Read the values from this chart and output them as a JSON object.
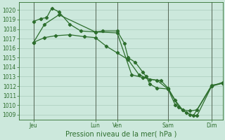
{
  "title": "Pression niveau de la mer( hPa )",
  "bg_color": "#cce8dc",
  "grid_color": "#aaccbb",
  "line_color": "#2d6e2d",
  "vline_color": "#556655",
  "xlim": [
    0,
    28
  ],
  "ylim": [
    1008.5,
    1020.8
  ],
  "yticks": [
    1009,
    1010,
    1011,
    1012,
    1013,
    1014,
    1015,
    1016,
    1017,
    1018,
    1019,
    1020
  ],
  "xtick_positions": [
    2.0,
    10.5,
    13.5,
    20.5,
    26.5
  ],
  "xtick_labels": [
    "Jeu",
    "Lun",
    "Ven",
    "Sam",
    "Dim"
  ],
  "vline_positions": [
    2.0,
    10.5,
    13.5,
    20.5,
    26.5
  ],
  "series1_x": [
    2.0,
    3.0,
    3.8,
    4.5,
    5.5,
    7.0,
    8.5,
    10.5,
    11.5,
    13.5,
    14.5,
    15.0,
    16.0,
    17.0,
    17.5,
    18.0,
    19.0,
    20.5,
    21.5,
    22.5,
    23.5,
    24.5,
    26.5,
    28.0
  ],
  "series1_y": [
    1018.8,
    1019.1,
    1019.2,
    1020.2,
    1019.8,
    1018.5,
    1017.8,
    1017.7,
    1017.8,
    1017.8,
    1016.5,
    1015.0,
    1014.5,
    1013.5,
    1013.0,
    1012.2,
    1011.8,
    1011.7,
    1010.0,
    1009.5,
    1009.0,
    1008.9,
    1012.0,
    1012.3
  ],
  "series2_x": [
    2.0,
    3.5,
    5.0,
    7.0,
    9.0,
    10.5,
    12.0,
    13.5,
    15.0,
    16.5,
    18.0,
    19.5,
    20.5,
    21.5,
    22.5,
    23.5,
    24.5,
    26.5,
    28.0
  ],
  "series2_y": [
    1016.6,
    1017.1,
    1017.3,
    1017.4,
    1017.2,
    1017.1,
    1016.2,
    1015.5,
    1014.8,
    1013.2,
    1012.7,
    1012.6,
    1011.8,
    1010.5,
    1009.5,
    1009.4,
    1009.5,
    1012.0,
    1012.4
  ],
  "series3_x": [
    2.0,
    3.5,
    5.5,
    10.5,
    13.5,
    15.5,
    17.0,
    19.0,
    20.5,
    22.0,
    23.0,
    24.0,
    26.5,
    28.0
  ],
  "series3_y": [
    1016.6,
    1018.5,
    1019.5,
    1017.7,
    1017.6,
    1013.2,
    1012.9,
    1012.6,
    1011.7,
    1009.8,
    1009.2,
    1008.9,
    1012.1,
    1012.3
  ]
}
